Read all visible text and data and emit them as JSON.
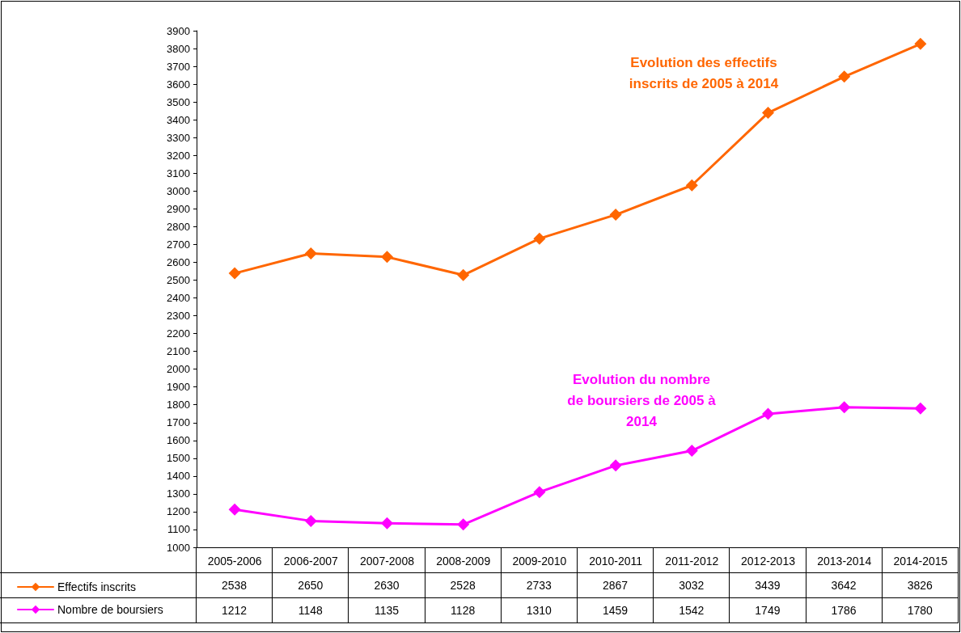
{
  "chart_data": {
    "type": "line",
    "categories": [
      "2005-2006",
      "2006-2007",
      "2007-2008",
      "2008-2009",
      "2009-2010",
      "2010-2011",
      "2011-2012",
      "2012-2013",
      "2013-2014",
      "2014-2015"
    ],
    "series": [
      {
        "name": "Effectifs inscrits",
        "color": "#ff6600",
        "values": [
          2538,
          2650,
          2630,
          2528,
          2733,
          2867,
          3032,
          3439,
          3642,
          3826
        ]
      },
      {
        "name": "Nombre de boursiers",
        "color": "#ff00ff",
        "values": [
          1212,
          1148,
          1135,
          1128,
          1310,
          1459,
          1542,
          1749,
          1786,
          1780
        ]
      }
    ],
    "ylim": [
      1000,
      3900
    ],
    "yticks": [
      1000,
      1100,
      1200,
      1300,
      1400,
      1500,
      1600,
      1700,
      1800,
      1900,
      2000,
      2100,
      2200,
      2300,
      2400,
      2500,
      2600,
      2700,
      2800,
      2900,
      3000,
      3100,
      3200,
      3300,
      3400,
      3500,
      3600,
      3700,
      3800,
      3900
    ],
    "annotations": [
      "Evolution des effectifs\ninscrits de 2005 à 2014",
      "Evolution du nombre\nde boursiers de 2005 à\n2014"
    ],
    "marker": "diamond",
    "line_style": "solid",
    "grid": false,
    "legend": "bottom left",
    "data_labels": true
  }
}
